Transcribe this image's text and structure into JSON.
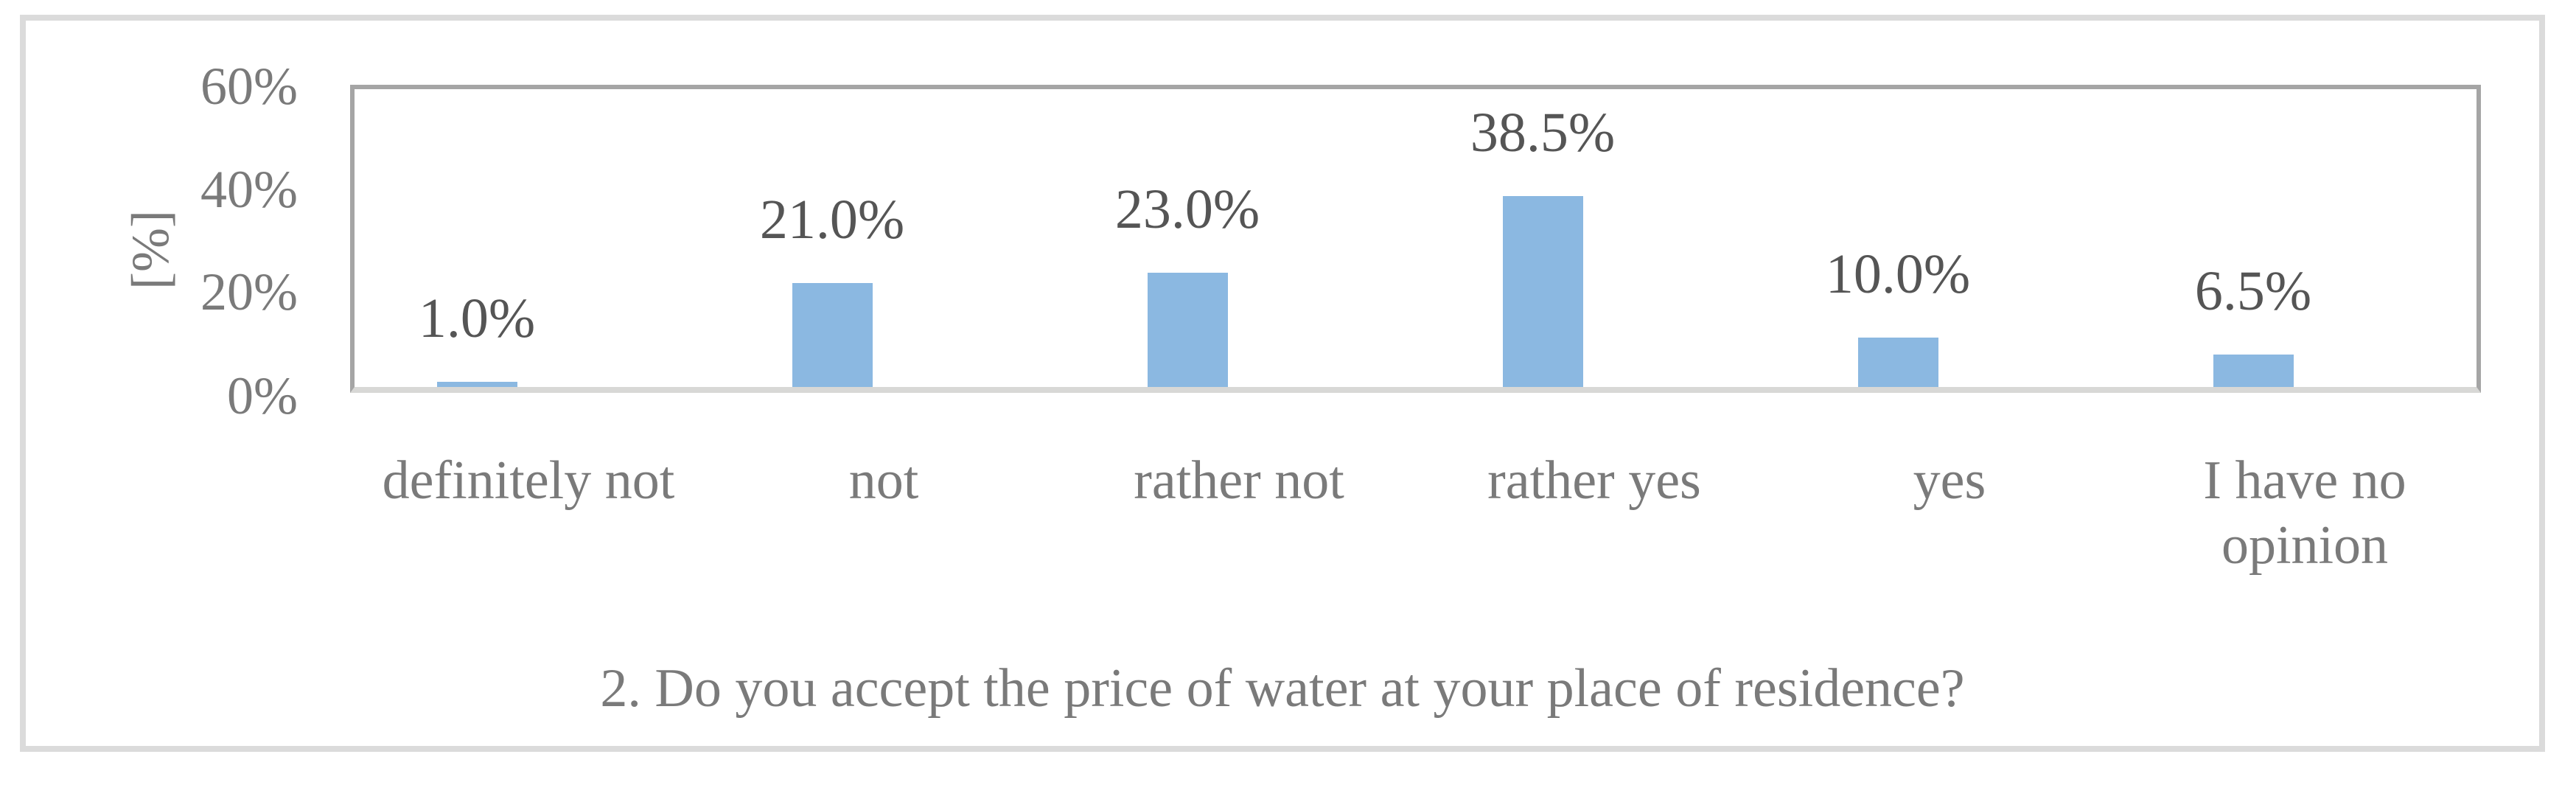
{
  "chart_data": {
    "type": "bar",
    "title": "2. Do you accept the price of water at your place of residence?",
    "ylabel": "[%]",
    "categories": [
      "definitely not",
      "not",
      "rather not",
      "rather yes",
      "yes",
      "I have no opinion"
    ],
    "values": [
      1.0,
      21.0,
      23.0,
      38.5,
      10.0,
      6.5
    ],
    "value_labels": [
      "1.0%",
      "21.0%",
      "23.0%",
      "38.5%",
      "10.0%",
      "6.5%"
    ],
    "y_ticks": [
      "0%",
      "20%",
      "40%",
      "60%"
    ],
    "ylim": [
      0,
      60
    ],
    "grid": "horizontal-major",
    "legend": "none",
    "colors": {
      "bar_fill": "#8bb8e1",
      "value_label_text": "#555555",
      "axis_text": "#7a7a7a",
      "gridline": "#d6d6d4",
      "plot_border": "#a5a5a5",
      "outer_frame": "#dbdbdb"
    }
  }
}
